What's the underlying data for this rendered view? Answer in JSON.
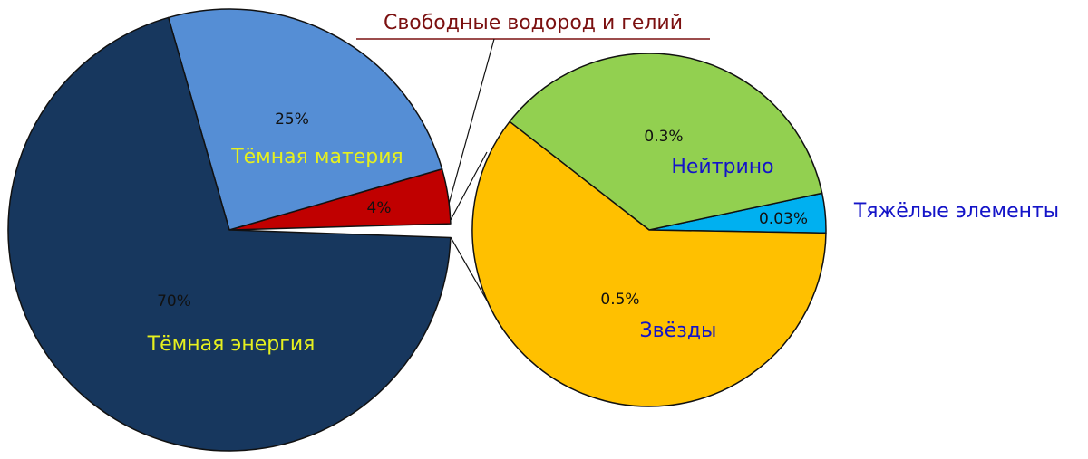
{
  "chart_data": [
    {
      "type": "pie",
      "categories": [
        "Свободные водород и гелий",
        "Тёмная материя",
        "Тёмная энергия"
      ],
      "values": [
        4,
        25,
        70
      ],
      "value_labels": [
        "4%",
        "25%",
        "70%"
      ],
      "colors": [
        "#c00000",
        "#558ed5",
        "#17375e"
      ]
    },
    {
      "type": "pie",
      "categories": [
        "Тяжёлые элементы",
        "Нейтрино",
        "Звёзды"
      ],
      "values": [
        0.03,
        0.3,
        0.5
      ],
      "value_labels": [
        "0.03%",
        "0.3%",
        "0.5%"
      ],
      "colors": [
        "#00b0f0",
        "#92d050",
        "#ffc000"
      ]
    }
  ]
}
